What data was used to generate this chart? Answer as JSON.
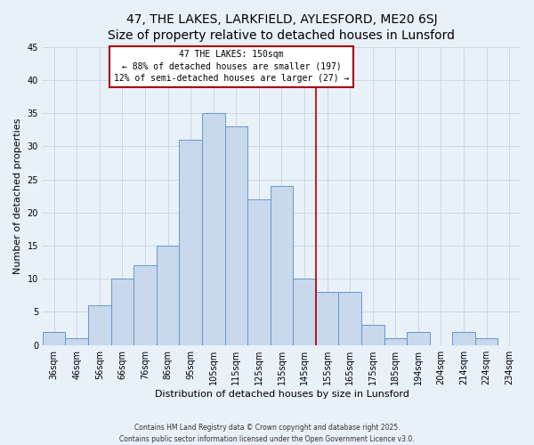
{
  "title": "47, THE LAKES, LARKFIELD, AYLESFORD, ME20 6SJ",
  "subtitle": "Size of property relative to detached houses in Lunsford",
  "xlabel": "Distribution of detached houses by size in Lunsford",
  "ylabel": "Number of detached properties",
  "bar_labels": [
    "36sqm",
    "46sqm",
    "56sqm",
    "66sqm",
    "76sqm",
    "86sqm",
    "95sqm",
    "105sqm",
    "115sqm",
    "125sqm",
    "135sqm",
    "145sqm",
    "155sqm",
    "165sqm",
    "175sqm",
    "185sqm",
    "194sqm",
    "204sqm",
    "214sqm",
    "224sqm",
    "234sqm"
  ],
  "bar_values": [
    2,
    1,
    6,
    10,
    12,
    15,
    31,
    35,
    33,
    22,
    24,
    10,
    8,
    8,
    3,
    1,
    2,
    0,
    2,
    1,
    0
  ],
  "bar_color": "#c8d8ed",
  "bar_edge_color": "#6699cc",
  "ylim": [
    0,
    45
  ],
  "yticks": [
    0,
    5,
    10,
    15,
    20,
    25,
    30,
    35,
    40,
    45
  ],
  "vline_color": "#aa0000",
  "annotation_title": "47 THE LAKES: 150sqm",
  "annotation_line1": "← 88% of detached houses are smaller (197)",
  "annotation_line2": "12% of semi-detached houses are larger (27) →",
  "annotation_box_color": "#ffffff",
  "annotation_box_edge": "#aa0000",
  "footnote1": "Contains HM Land Registry data © Crown copyright and database right 2025.",
  "footnote2": "Contains public sector information licensed under the Open Government Licence v3.0.",
  "bg_color": "#e8f0f8",
  "grid_color": "#c8d4e0",
  "title_fontsize": 10,
  "label_fontsize": 8,
  "tick_fontsize": 7,
  "annot_fontsize": 7,
  "footnote_fontsize": 5.5
}
